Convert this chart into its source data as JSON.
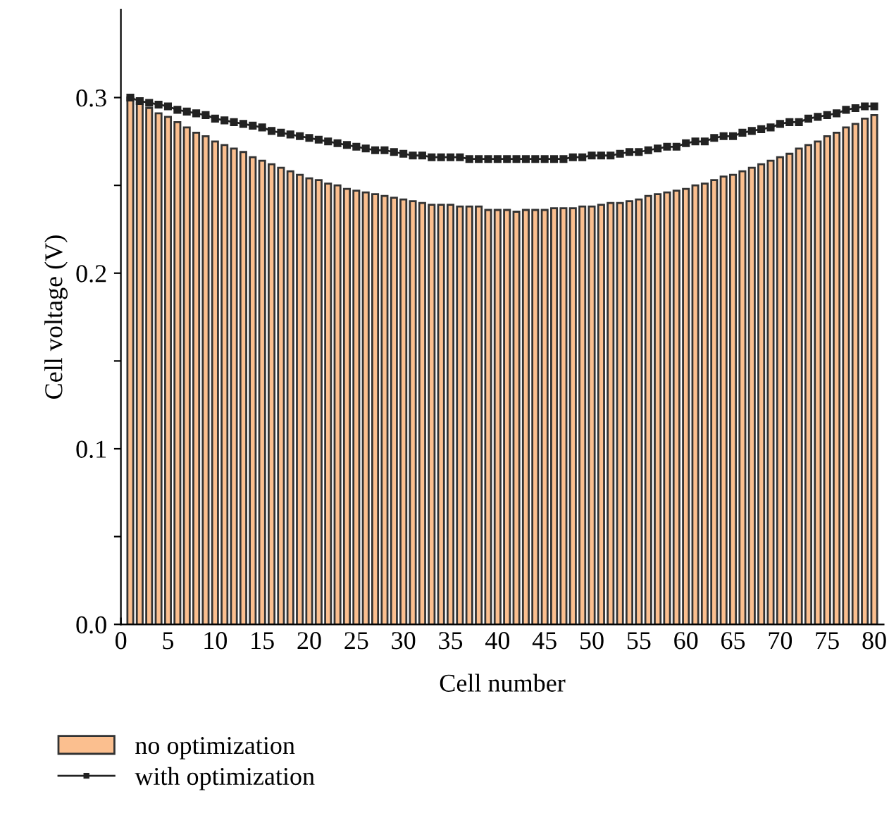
{
  "chart_data": {
    "type": "bar",
    "xlabel": "Cell number",
    "ylabel": "Cell voltage (V)",
    "x": [
      1,
      2,
      3,
      4,
      5,
      6,
      7,
      8,
      9,
      10,
      11,
      12,
      13,
      14,
      15,
      16,
      17,
      18,
      19,
      20,
      21,
      22,
      23,
      24,
      25,
      26,
      27,
      28,
      29,
      30,
      31,
      32,
      33,
      34,
      35,
      36,
      37,
      38,
      39,
      40,
      41,
      42,
      43,
      44,
      45,
      46,
      47,
      48,
      49,
      50,
      51,
      52,
      53,
      54,
      55,
      56,
      57,
      58,
      59,
      60,
      61,
      62,
      63,
      64,
      65,
      66,
      67,
      68,
      69,
      70,
      71,
      72,
      73,
      74,
      75,
      76,
      77,
      78,
      79,
      80
    ],
    "series": [
      {
        "name": "no optimization",
        "color": "#fbbf8f",
        "values": [
          0.3,
          0.297,
          0.294,
          0.291,
          0.289,
          0.286,
          0.283,
          0.28,
          0.278,
          0.275,
          0.273,
          0.271,
          0.269,
          0.266,
          0.264,
          0.262,
          0.26,
          0.258,
          0.256,
          0.254,
          0.253,
          0.251,
          0.25,
          0.248,
          0.247,
          0.246,
          0.245,
          0.244,
          0.243,
          0.242,
          0.241,
          0.24,
          0.239,
          0.239,
          0.239,
          0.238,
          0.238,
          0.238,
          0.236,
          0.236,
          0.236,
          0.235,
          0.236,
          0.236,
          0.236,
          0.237,
          0.237,
          0.237,
          0.238,
          0.238,
          0.239,
          0.24,
          0.24,
          0.241,
          0.242,
          0.244,
          0.245,
          0.246,
          0.247,
          0.248,
          0.25,
          0.251,
          0.253,
          0.255,
          0.256,
          0.258,
          0.26,
          0.262,
          0.264,
          0.266,
          0.268,
          0.271,
          0.273,
          0.275,
          0.278,
          0.28,
          0.283,
          0.285,
          0.288,
          0.29
        ]
      },
      {
        "name": "with optimization",
        "type": "line",
        "color": "#222222",
        "marker": "square",
        "values": [
          0.3,
          0.298,
          0.297,
          0.296,
          0.295,
          0.293,
          0.292,
          0.291,
          0.29,
          0.288,
          0.287,
          0.286,
          0.285,
          0.284,
          0.283,
          0.281,
          0.28,
          0.279,
          0.278,
          0.277,
          0.276,
          0.275,
          0.274,
          0.273,
          0.272,
          0.271,
          0.27,
          0.27,
          0.269,
          0.268,
          0.267,
          0.267,
          0.266,
          0.266,
          0.266,
          0.266,
          0.265,
          0.265,
          0.265,
          0.265,
          0.265,
          0.265,
          0.265,
          0.265,
          0.265,
          0.265,
          0.265,
          0.266,
          0.266,
          0.267,
          0.267,
          0.267,
          0.268,
          0.269,
          0.269,
          0.27,
          0.271,
          0.272,
          0.272,
          0.274,
          0.275,
          0.275,
          0.277,
          0.278,
          0.278,
          0.28,
          0.281,
          0.282,
          0.283,
          0.285,
          0.286,
          0.286,
          0.288,
          0.289,
          0.29,
          0.291,
          0.293,
          0.294,
          0.295,
          0.295
        ]
      }
    ],
    "xlim": [
      0,
      81
    ],
    "xticks": [
      0,
      5,
      10,
      15,
      20,
      25,
      30,
      35,
      40,
      45,
      50,
      55,
      60,
      65,
      70,
      75,
      80
    ],
    "ylim": [
      0,
      0.35
    ],
    "yticks": [
      {
        "value": 0.0,
        "label": "0.0"
      },
      {
        "value": 0.05,
        "label": null
      },
      {
        "value": 0.1,
        "label": "0.1"
      },
      {
        "value": 0.15,
        "label": null
      },
      {
        "value": 0.2,
        "label": "0.2"
      },
      {
        "value": 0.25,
        "label": null
      },
      {
        "value": 0.3,
        "label": "0.3"
      }
    ],
    "grid": false,
    "legend": "bottom left"
  }
}
